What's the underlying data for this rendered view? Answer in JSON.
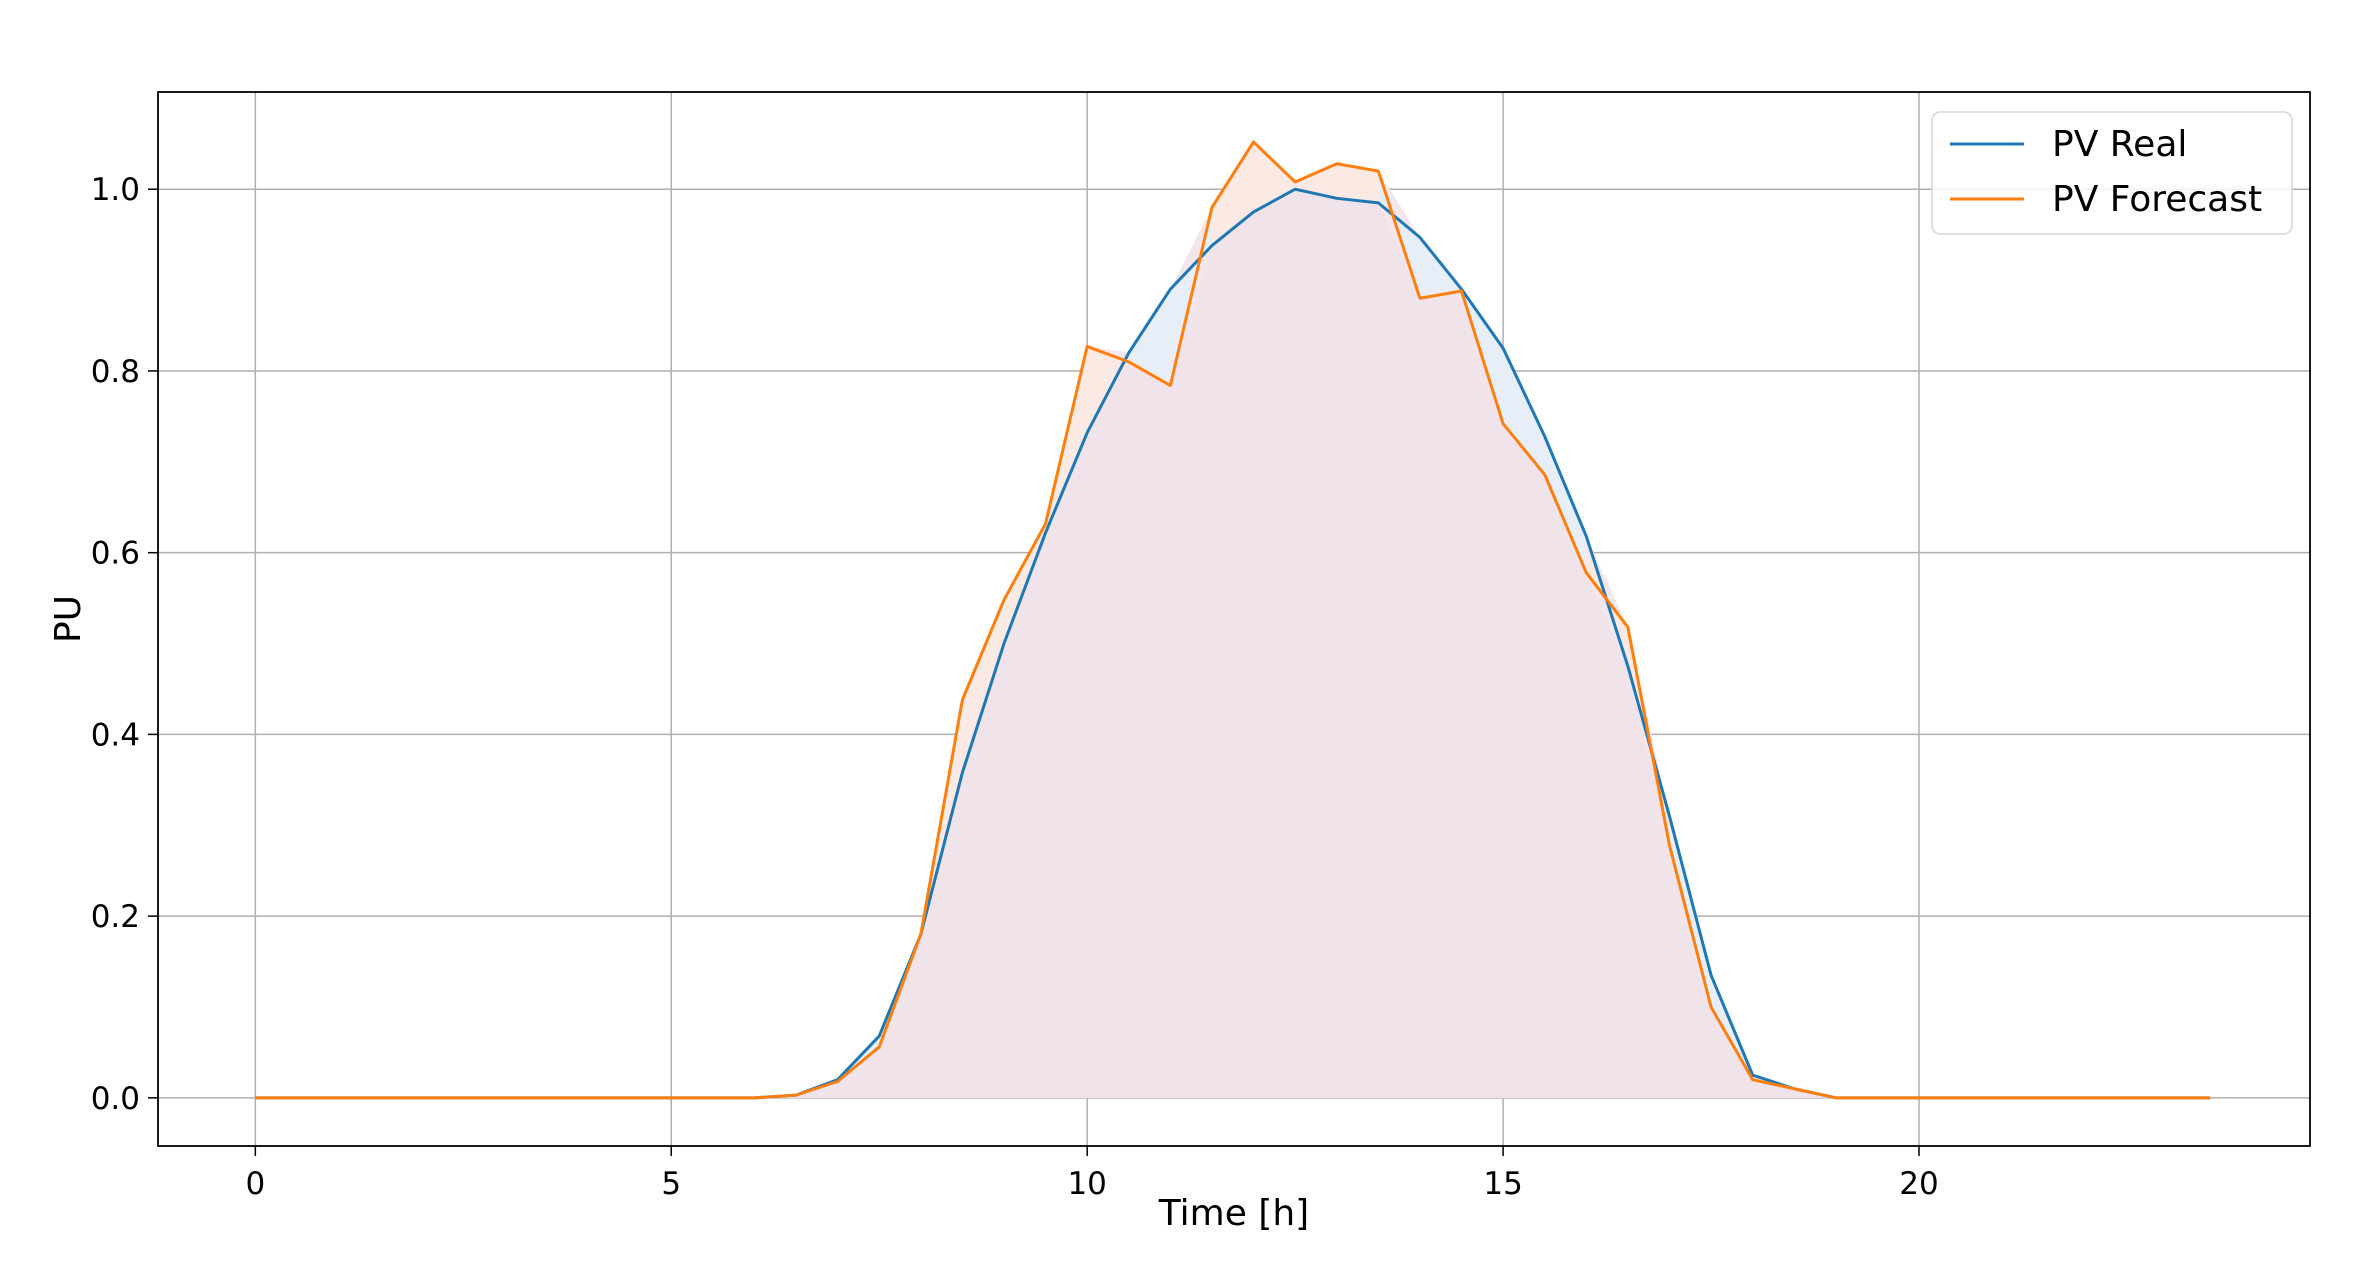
{
  "chart_data": {
    "type": "line",
    "title": "",
    "xlabel": "Time [h]",
    "ylabel": "PU",
    "xlim": [
      -1.17,
      24.7
    ],
    "ylim": [
      -0.053,
      1.107
    ],
    "xticks": [
      0,
      5,
      10,
      15,
      20
    ],
    "yticks": [
      0.0,
      0.2,
      0.4,
      0.6,
      0.8,
      1.0
    ],
    "xtick_labels": [
      "0",
      "5",
      "10",
      "15",
      "20"
    ],
    "ytick_labels": [
      "0.0",
      "0.2",
      "0.4",
      "0.6",
      "0.8",
      "1.0"
    ],
    "grid": true,
    "legend_position": "top-right",
    "fill_between_series": true,
    "x": [
      0,
      0.5,
      1,
      1.5,
      2,
      2.5,
      3,
      3.5,
      4,
      4.5,
      5,
      5.5,
      6,
      6.5,
      7,
      7.5,
      8,
      8.5,
      9,
      9.5,
      10,
      10.5,
      11,
      11.5,
      12,
      12.5,
      13,
      13.5,
      14,
      14.5,
      15,
      15.5,
      16,
      16.5,
      17,
      17.5,
      18,
      18.5,
      19,
      19.5,
      20,
      20.5,
      21,
      21.5,
      22,
      22.5,
      23,
      23.5
    ],
    "series": [
      {
        "name": "PV Real",
        "color": "#1f77b4",
        "values": [
          0,
          0,
          0,
          0,
          0,
          0,
          0,
          0,
          0,
          0,
          0,
          0,
          0,
          0.003,
          0.02,
          0.068,
          0.18,
          0.358,
          0.5,
          0.622,
          0.732,
          0.82,
          0.89,
          0.938,
          0.975,
          1.0,
          0.99,
          0.985,
          0.947,
          0.89,
          0.825,
          0.728,
          0.618,
          0.475,
          0.31,
          0.135,
          0.025,
          0.01,
          0,
          0,
          0,
          0,
          0,
          0,
          0,
          0,
          0,
          0
        ]
      },
      {
        "name": "PV Forecast",
        "color": "#ff7f0e",
        "values": [
          0,
          0,
          0,
          0,
          0,
          0,
          0,
          0,
          0,
          0,
          0,
          0,
          0,
          0.003,
          0.018,
          0.056,
          0.18,
          0.438,
          0.548,
          0.632,
          0.827,
          0.81,
          0.784,
          0.98,
          1.052,
          1.008,
          1.028,
          1.02,
          0.88,
          0.888,
          0.742,
          0.686,
          0.578,
          0.518,
          0.278,
          0.1,
          0.02,
          0.01,
          0,
          0,
          0,
          0,
          0,
          0,
          0,
          0,
          0,
          0
        ]
      }
    ]
  }
}
